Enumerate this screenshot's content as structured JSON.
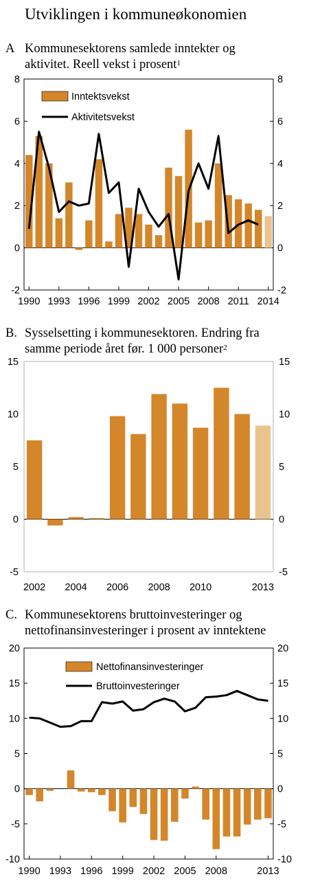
{
  "page_title": "Utviklingen i kommuneøkonomien",
  "colors": {
    "bar": "#D4862A",
    "bar_projection": "#EAC48E",
    "line": "#000000",
    "frame_b": "#B0B0B0"
  },
  "chart_data": [
    {
      "id": "A",
      "type": "bar+line",
      "letter": "A",
      "title_line1": "Kommunesektorens samlede inntekter og",
      "title_line2": "aktivitet. Reell vekst i prosent",
      "footnote": "1",
      "ylim": [
        -2,
        8
      ],
      "yticks": [
        -2,
        0,
        2,
        4,
        6,
        8
      ],
      "x_tick_labels": [
        "1990",
        "1993",
        "1996",
        "1999",
        "2002",
        "2005",
        "2008",
        "2011",
        "2014"
      ],
      "x": [
        1990,
        1991,
        1992,
        1993,
        1994,
        1995,
        1996,
        1997,
        1998,
        1999,
        2000,
        2001,
        2002,
        2003,
        2004,
        2005,
        2006,
        2007,
        2008,
        2009,
        2010,
        2011,
        2012,
        2013,
        2014
      ],
      "series": [
        {
          "name": "Inntektsvekst",
          "kind": "bar",
          "values": [
            4.4,
            5.3,
            4.0,
            1.4,
            3.1,
            -0.1,
            1.3,
            4.2,
            0.3,
            1.6,
            1.9,
            1.6,
            1.1,
            0.6,
            3.8,
            3.4,
            5.6,
            1.2,
            1.3,
            4.0,
            2.5,
            2.3,
            2.1,
            1.8,
            1.5
          ],
          "projection_from": 2014
        },
        {
          "name": "Aktivitetsvekst",
          "kind": "line",
          "values": [
            0.9,
            5.5,
            3.8,
            1.7,
            2.2,
            2.0,
            2.1,
            5.4,
            2.6,
            3.1,
            -0.9,
            2.8,
            1.7,
            1.0,
            1.6,
            -1.5,
            2.7,
            4.0,
            2.8,
            5.3,
            0.7,
            1.1,
            1.3,
            1.1,
            null
          ]
        }
      ],
      "legend_placement": "top-left"
    },
    {
      "id": "B",
      "type": "bar",
      "letter": "B.",
      "title_line1": "Sysselsetting i kommunesektoren. Endring fra",
      "title_line2": "samme periode året før. 1 000 personer",
      "footnote": "2",
      "ylim": [
        -5,
        15
      ],
      "yticks": [
        -5,
        0,
        5,
        10,
        15
      ],
      "x_tick_labels": [
        "2002",
        "2004",
        "2006",
        "2008",
        "2010",
        "2013"
      ],
      "x": [
        2002,
        2003,
        2004,
        2005,
        2006,
        2007,
        2008,
        2009,
        2010,
        2011,
        2012,
        2013
      ],
      "values": [
        7.5,
        -0.6,
        0.2,
        0.1,
        9.8,
        8.1,
        11.9,
        11.0,
        8.7,
        12.5,
        10.0,
        8.9
      ],
      "projection_from": 2013
    },
    {
      "id": "C",
      "type": "bar+line",
      "letter": "C.",
      "title_line1": "Kommunesektorens bruttoinvesteringer og",
      "title_line2": "nettofinansinvesteringer i prosent av inntektene",
      "footnote": "",
      "ylim": [
        -10,
        20
      ],
      "yticks": [
        -10,
        -5,
        0,
        5,
        10,
        15,
        20
      ],
      "x_tick_labels": [
        "1990",
        "1993",
        "1996",
        "1999",
        "2002",
        "2005",
        "2008",
        "2013"
      ],
      "x": [
        1990,
        1991,
        1992,
        1993,
        1994,
        1995,
        1996,
        1997,
        1998,
        1999,
        2000,
        2001,
        2002,
        2003,
        2004,
        2005,
        2006,
        2007,
        2008,
        2009,
        2010,
        2011,
        2012,
        2013
      ],
      "series": [
        {
          "name": "Nettofinansinvesteringer",
          "kind": "bar",
          "values": [
            -0.9,
            -1.8,
            -0.3,
            0.0,
            2.6,
            -0.4,
            -0.5,
            -0.9,
            -3.2,
            -4.8,
            -2.6,
            -3.6,
            -7.3,
            -7.4,
            -4.7,
            -1.4,
            0.3,
            -4.4,
            -8.6,
            -6.8,
            -6.8,
            -5.1,
            -4.4,
            -4.2
          ]
        },
        {
          "name": "Bruttoinvesteringer",
          "kind": "line",
          "values": [
            10.1,
            10.0,
            9.4,
            8.8,
            8.9,
            9.6,
            9.6,
            12.3,
            12.1,
            12.4,
            11.1,
            11.3,
            12.3,
            12.8,
            12.4,
            11.0,
            11.5,
            13.0,
            13.1,
            13.3,
            13.9,
            13.3,
            12.7,
            12.5
          ]
        }
      ],
      "legend_placement": "top-center"
    }
  ]
}
